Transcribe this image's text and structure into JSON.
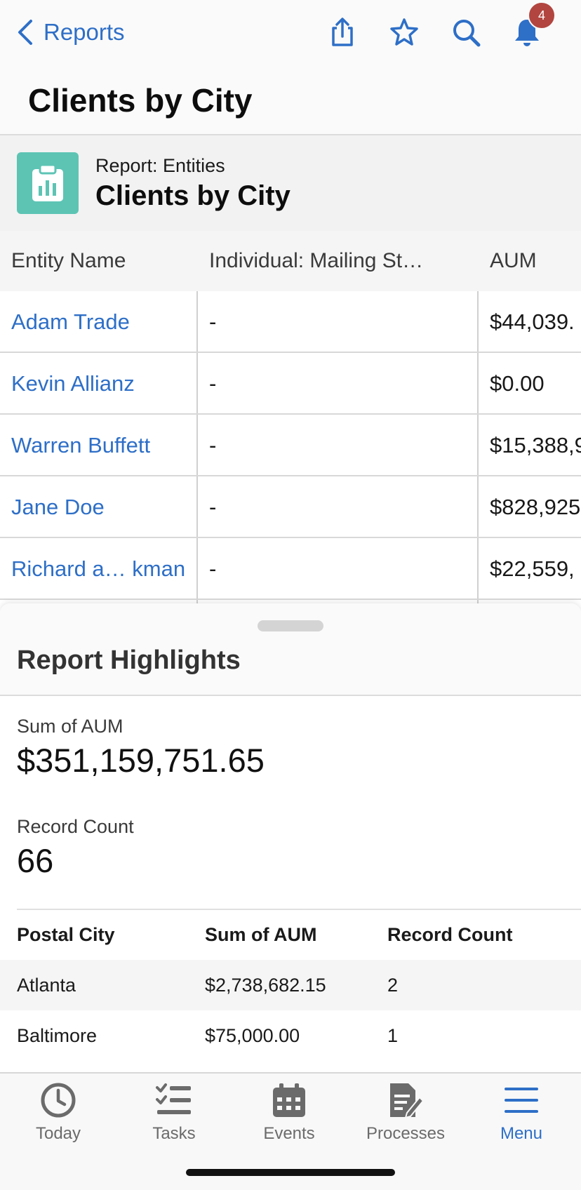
{
  "nav": {
    "back_label": "Reports",
    "notification_count": "4",
    "icons": [
      "share-icon",
      "star-icon",
      "search-icon",
      "bell-icon"
    ]
  },
  "page": {
    "title": "Clients by City"
  },
  "report": {
    "subtitle": "Report: Entities",
    "title": "Clients by City",
    "icon_color": "#5dc4b4"
  },
  "table": {
    "columns": [
      "Entity Name",
      "Individual: Mailing St…",
      "AUM"
    ],
    "rows": [
      {
        "name": "Adam Trade",
        "mailing": "-",
        "aum": "$44,039."
      },
      {
        "name": "Kevin Allianz",
        "mailing": "-",
        "aum": "$0.00"
      },
      {
        "name": "Warren Buffett",
        "mailing": "-",
        "aum": "$15,388,9"
      },
      {
        "name": "Jane Doe",
        "mailing": "-",
        "aum": "$828,925"
      },
      {
        "name": "Richard a… kman",
        "mailing": "-",
        "aum": "$22,559,"
      }
    ]
  },
  "highlights": {
    "title": "Report Highlights",
    "sum_label": "Sum of AUM",
    "sum_value": "$351,159,751.65",
    "count_label": "Record Count",
    "count_value": "66",
    "summary_columns": [
      "Postal City",
      "Sum of AUM",
      "Record Count"
    ],
    "summary_rows": [
      {
        "city": "Atlanta",
        "sum": "$2,738,682.15",
        "count": "2"
      },
      {
        "city": "Baltimore",
        "sum": "$75,000.00",
        "count": "1"
      }
    ]
  },
  "tabs": [
    {
      "label": "Today",
      "icon": "clock-icon"
    },
    {
      "label": "Tasks",
      "icon": "checklist-icon"
    },
    {
      "label": "Events",
      "icon": "calendar-icon"
    },
    {
      "label": "Processes",
      "icon": "document-icon"
    },
    {
      "label": "Menu",
      "icon": "hamburger-icon",
      "active": true
    }
  ],
  "colors": {
    "accent": "#2e6fc7",
    "badge": "#b2453f",
    "tab_inactive": "#6b6b6b"
  }
}
